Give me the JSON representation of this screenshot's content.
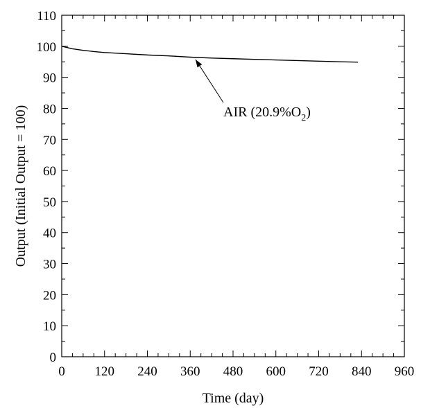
{
  "chart_data": {
    "type": "line",
    "xlabel": "Time (day)",
    "ylabel": "Output (Initial Output = 100)",
    "xlim": [
      0,
      960
    ],
    "ylim": [
      0,
      110
    ],
    "xticks": [
      0,
      120,
      240,
      360,
      480,
      600,
      720,
      840,
      960
    ],
    "yticks": [
      0,
      10,
      20,
      30,
      40,
      50,
      60,
      70,
      80,
      90,
      100,
      110
    ],
    "grid": false,
    "series": [
      {
        "x": [
          0,
          30,
          60,
          90,
          120,
          180,
          240,
          300,
          360,
          420,
          480,
          540,
          600,
          660,
          720,
          780,
          830
        ],
        "y": [
          100,
          99.2,
          98.7,
          98.3,
          98.0,
          97.6,
          97.2,
          96.9,
          96.5,
          96.2,
          96.0,
          95.8,
          95.6,
          95.4,
          95.2,
          95.0,
          94.9
        ]
      }
    ],
    "annotation": {
      "text_main": "AIR (20.9%O",
      "text_sub": "2",
      "text_end": ")",
      "arrow_target": {
        "x": 375,
        "y": 96.4
      }
    }
  }
}
